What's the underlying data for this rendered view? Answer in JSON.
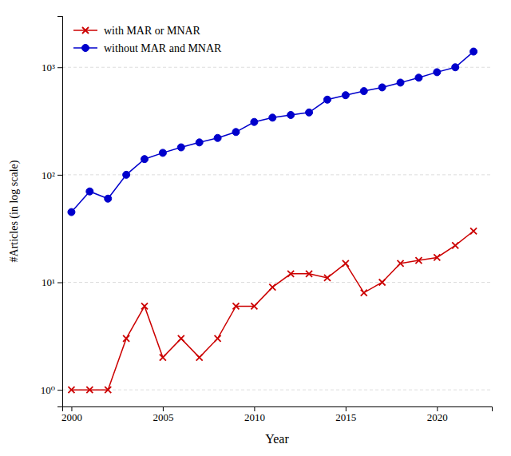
{
  "chart_data": {
    "type": "line",
    "x_label": "Year",
    "y_label": "#Articles (in log scale)",
    "x": [
      2000,
      2001,
      2002,
      2003,
      2004,
      2005,
      2006,
      2007,
      2008,
      2009,
      2010,
      2011,
      2012,
      2013,
      2014,
      2015,
      2016,
      2017,
      2018,
      2019,
      2020,
      2021,
      2022
    ],
    "series": [
      {
        "name": "with MAR or MNAR",
        "color": "#cc0000",
        "marker": "x",
        "values": [
          1,
          1,
          1,
          3,
          6,
          2,
          3,
          2,
          3,
          6,
          6,
          9,
          12,
          12,
          11,
          15,
          8,
          10,
          15,
          16,
          17,
          22,
          30
        ]
      },
      {
        "name": "without MAR and MNAR",
        "color": "#0000cc",
        "marker": "o",
        "values": [
          45,
          70,
          60,
          100,
          140,
          160,
          180,
          200,
          220,
          250,
          310,
          340,
          360,
          380,
          500,
          550,
          600,
          650,
          720,
          800,
          900,
          1000,
          1400
        ]
      }
    ],
    "xlim": [
      1999.5,
      2023
    ],
    "xticks": [
      2000,
      2005,
      2010,
      2015,
      2020
    ],
    "ylim": [
      0.7,
      3000
    ],
    "yticks": [
      {
        "value": 1,
        "label": "10⁰"
      },
      {
        "value": 10,
        "label": "10¹"
      },
      {
        "value": 100,
        "label": "10²"
      },
      {
        "value": 1000,
        "label": "10³"
      }
    ],
    "log": "y",
    "grid": "y",
    "legend": "upper left"
  }
}
